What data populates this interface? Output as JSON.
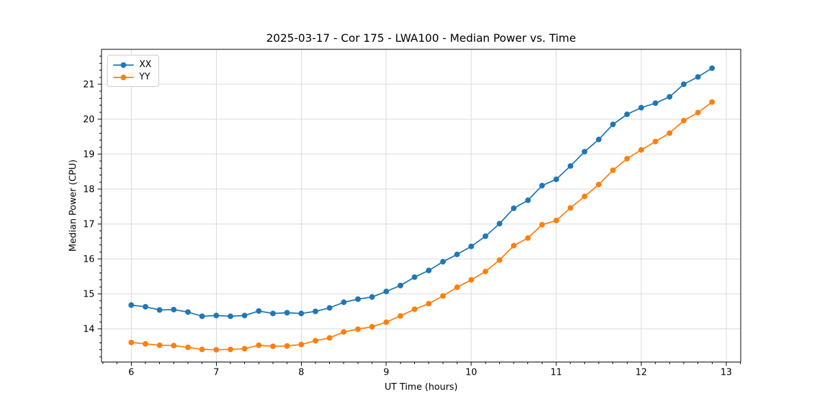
{
  "figure": {
    "title": "2025-03-17 - Cor 175 - LWA100 - Median Power vs. Time",
    "xlabel": "UT Time (hours)",
    "ylabel": "Median Power (CPU)"
  },
  "chart_data": {
    "type": "line",
    "title": "2025-03-17 - Cor 175 - LWA100 - Median Power vs. Time",
    "xlabel": "UT Time (hours)",
    "ylabel": "Median Power (CPU)",
    "legend_position": "upper-left",
    "grid": "major",
    "xlim": [
      5.65,
      13.17
    ],
    "ylim": [
      13.05,
      22.0
    ],
    "xticks": [
      6,
      7,
      8,
      9,
      10,
      11,
      12,
      13
    ],
    "yticks": [
      14,
      15,
      16,
      17,
      18,
      19,
      20,
      21
    ],
    "x_minor_step": 0.166667,
    "y_minor_step": 0.2,
    "x": [
      6.0,
      6.167,
      6.333,
      6.5,
      6.667,
      6.833,
      7.0,
      7.167,
      7.333,
      7.5,
      7.667,
      7.833,
      8.0,
      8.167,
      8.333,
      8.5,
      8.667,
      8.833,
      9.0,
      9.167,
      9.333,
      9.5,
      9.667,
      9.833,
      10.0,
      10.167,
      10.333,
      10.5,
      10.667,
      10.833,
      11.0,
      11.167,
      11.333,
      11.5,
      11.667,
      11.833,
      12.0,
      12.167,
      12.333,
      12.5,
      12.667,
      12.833
    ],
    "series": [
      {
        "name": "XX",
        "color": "#1f77b4",
        "values": [
          14.68,
          14.63,
          14.54,
          14.55,
          14.48,
          14.36,
          14.38,
          14.36,
          14.38,
          14.51,
          14.44,
          14.46,
          14.44,
          14.5,
          14.6,
          14.76,
          14.85,
          14.91,
          15.07,
          15.24,
          15.48,
          15.67,
          15.92,
          16.13,
          16.36,
          16.65,
          17.01,
          17.45,
          17.68,
          18.1,
          18.28,
          18.66,
          19.07,
          19.42,
          19.85,
          20.14,
          20.33,
          20.46,
          20.64,
          21.0,
          21.21,
          21.46
        ]
      },
      {
        "name": "YY",
        "color": "#ff7f0e",
        "values": [
          13.61,
          13.57,
          13.53,
          13.52,
          13.47,
          13.41,
          13.4,
          13.41,
          13.43,
          13.53,
          13.5,
          13.51,
          13.55,
          13.66,
          13.74,
          13.91,
          13.99,
          14.06,
          14.19,
          14.37,
          14.56,
          14.72,
          14.94,
          15.19,
          15.4,
          15.64,
          15.97,
          16.38,
          16.6,
          16.98,
          17.1,
          17.46,
          17.79,
          18.13,
          18.54,
          18.87,
          19.12,
          19.36,
          19.6,
          19.96,
          20.19,
          20.49
        ]
      }
    ]
  }
}
